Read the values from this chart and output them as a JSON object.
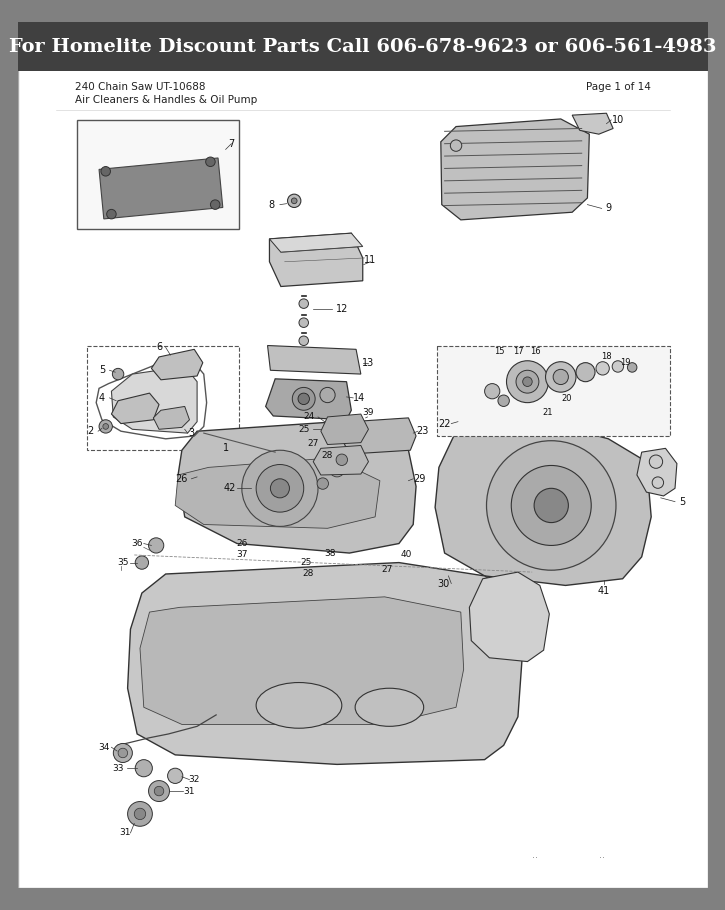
{
  "header_text": "For Homelite Discount Parts Call 606-678-9623 or 606-561-4983",
  "model_line1": "240 Chain Saw UT-10688",
  "model_line2": "Air Cleaners & Handles & Oil Pump",
  "page_text": "Page 1 of 14",
  "header_bg": "#404040",
  "header_text_color": "#ffffff",
  "body_bg": "#ffffff",
  "outer_bg": "#808080",
  "header_fontsize": 14,
  "subheader_fontsize": 7.5,
  "label_fontsize": 6.5,
  "figsize": [
    7.25,
    9.1
  ],
  "dpi": 100
}
